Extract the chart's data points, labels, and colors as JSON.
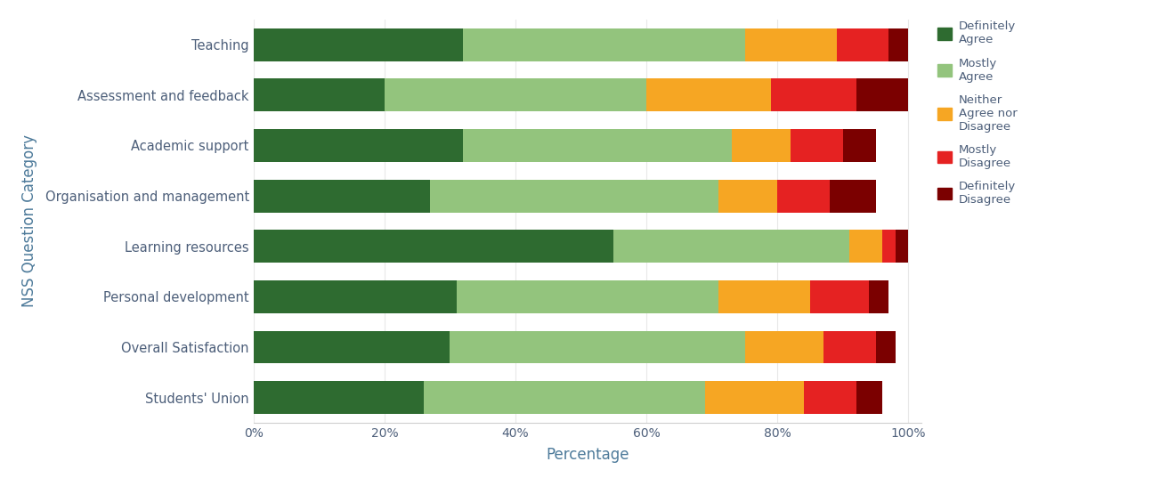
{
  "categories": [
    "Teaching",
    "Assessment and feedback",
    "Academic support",
    "Organisation and management",
    "Learning resources",
    "Personal development",
    "Overall Satisfaction",
    "Students' Union"
  ],
  "segments": {
    "Definitely Agree": [
      32,
      20,
      32,
      27,
      55,
      31,
      30,
      26
    ],
    "Mostly Agree": [
      43,
      40,
      41,
      44,
      36,
      40,
      45,
      43
    ],
    "Neither Agree nor Disagree": [
      14,
      19,
      9,
      9,
      5,
      14,
      12,
      15
    ],
    "Mostly Disagree": [
      8,
      13,
      8,
      8,
      2,
      9,
      8,
      8
    ],
    "Definitely Disagree": [
      3,
      8,
      5,
      7,
      2,
      3,
      3,
      4
    ]
  },
  "colors": {
    "Definitely Agree": "#2e6b30",
    "Mostly Agree": "#93c47d",
    "Neither Agree nor Disagree": "#f6a623",
    "Mostly Disagree": "#e52222",
    "Definitely Disagree": "#7b0000"
  },
  "legend_labels": {
    "Definitely Agree": "Definitely\nAgree",
    "Mostly Agree": "Mostly\nAgree",
    "Neither Agree nor Disagree": "Neither\nAgree nor\nDisagree",
    "Mostly Disagree": "Mostly\nDisagree",
    "Definitely Disagree": "Definitely\nDisagree"
  },
  "legend_order": [
    "Definitely Agree",
    "Mostly Agree",
    "Neither Agree nor Disagree",
    "Mostly Disagree",
    "Definitely Disagree"
  ],
  "xlabel": "Percentage",
  "ylabel": "NSS Question Category",
  "background_color": "#ffffff",
  "tick_label_color": "#4d5f7a",
  "axis_label_color": "#4d7a9a",
  "bar_height": 0.65,
  "figsize": [
    12.94,
    5.46
  ],
  "dpi": 100
}
